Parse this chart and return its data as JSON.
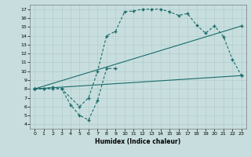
{
  "title": "",
  "xlabel": "Humidex (Indice chaleur)",
  "bg_color": "#c8dede",
  "line_color": "#1a6b6b",
  "grid_color": "#b0cccc",
  "xlim": [
    -0.5,
    23.5
  ],
  "ylim": [
    3.5,
    17.5
  ],
  "xticks": [
    0,
    1,
    2,
    3,
    4,
    5,
    6,
    7,
    8,
    9,
    10,
    11,
    12,
    13,
    14,
    15,
    16,
    17,
    18,
    19,
    20,
    21,
    22,
    23
  ],
  "yticks": [
    4,
    5,
    6,
    7,
    8,
    9,
    10,
    11,
    12,
    13,
    14,
    15,
    16,
    17
  ],
  "line1_x": [
    0,
    1,
    2,
    3,
    5,
    6,
    7,
    8,
    9,
    10,
    11,
    12,
    13,
    14,
    15,
    16,
    17,
    18,
    19,
    20,
    21,
    22,
    23
  ],
  "line1_y": [
    8,
    8,
    8,
    8,
    6,
    7,
    10,
    14,
    14.5,
    16.7,
    16.8,
    17,
    17,
    17,
    16.7,
    16.3,
    16.5,
    15.2,
    14.3,
    15.1,
    13.9,
    11.3,
    9.5
  ],
  "line2_x": [
    0,
    1,
    2,
    3,
    4,
    5,
    6,
    7,
    8,
    9
  ],
  "line2_y": [
    8,
    8,
    8.2,
    8,
    6.2,
    5,
    4.5,
    6.7,
    10.3,
    10.3
  ],
  "line3_x": [
    0,
    23
  ],
  "line3_y": [
    8,
    9.5
  ],
  "line4_x": [
    0,
    23
  ],
  "line4_y": [
    8,
    15.1
  ]
}
